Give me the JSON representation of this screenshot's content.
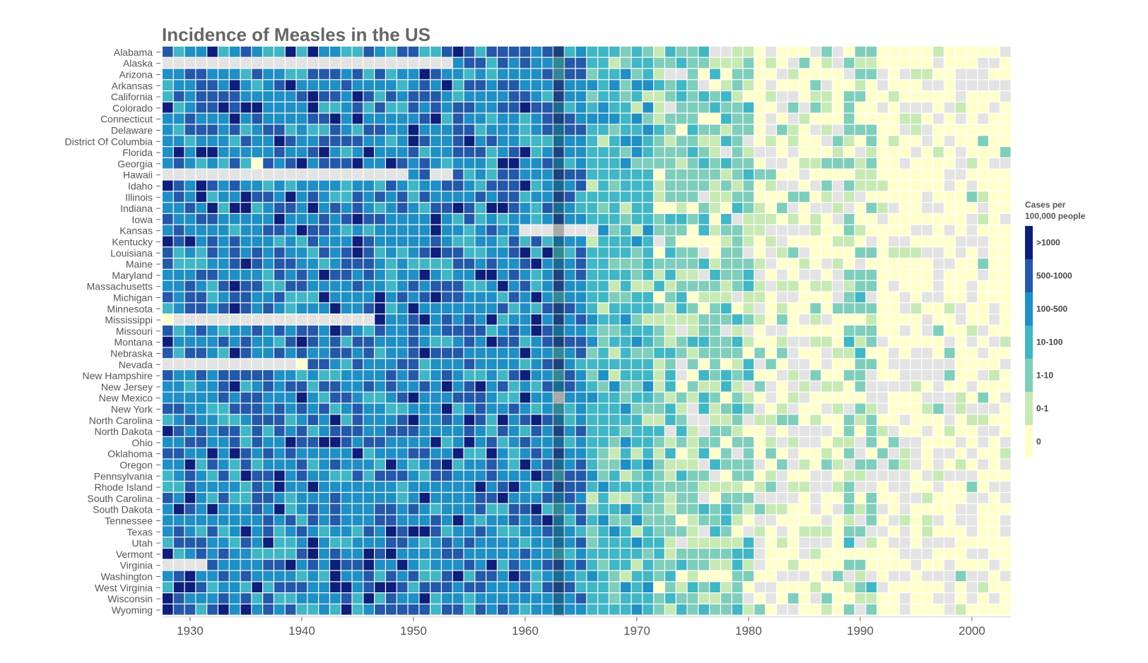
{
  "chart_data": {
    "type": "heatmap",
    "title": "Incidence of Measles in the US",
    "xlabel": "",
    "ylabel": "",
    "x_range": [
      1928,
      2003
    ],
    "x_ticks": [
      "1930",
      "1940",
      "1950",
      "1960",
      "1970",
      "1980",
      "1990",
      "2000"
    ],
    "highlight_year": 1963,
    "rows": [
      "Alabama",
      "Alaska",
      "Arizona",
      "Arkansas",
      "California",
      "Colorado",
      "Connecticut",
      "Delaware",
      "District Of Columbia",
      "Florida",
      "Georgia",
      "Hawaii",
      "Idaho",
      "Illinois",
      "Indiana",
      "Iowa",
      "Kansas",
      "Kentucky",
      "Louisiana",
      "Maine",
      "Maryland",
      "Massachusetts",
      "Michigan",
      "Minnesota",
      "Mississippi",
      "Missouri",
      "Montana",
      "Nebraska",
      "Nevada",
      "New Hampshire",
      "New Jersey",
      "New Mexico",
      "New York",
      "North Carolina",
      "North Dakota",
      "Ohio",
      "Oklahoma",
      "Oregon",
      "Pennsylvania",
      "Rhode Island",
      "South Carolina",
      "South Dakota",
      "Tennessee",
      "Texas",
      "Utah",
      "Vermont",
      "Virginia",
      "Washington",
      "West Virginia",
      "Wisconsin",
      "Wyoming"
    ],
    "missing_data_color": "#e3e3e3",
    "legend": {
      "title_line1": "Cases per",
      "title_line2": "100,000 people",
      "placement": "right",
      "bins": [
        {
          "label": ">1000",
          "color": "#0d1f7a"
        },
        {
          "label": "500-1000",
          "color": "#2458a8"
        },
        {
          "label": "100-500",
          "color": "#1f8fc4"
        },
        {
          "label": "10-100",
          "color": "#41b6c4"
        },
        {
          "label": "1-10",
          "color": "#7fcdbb"
        },
        {
          "label": "0-1",
          "color": "#c7e9b4"
        },
        {
          "label": "0",
          "color": "#ffffcc"
        }
      ]
    },
    "values_note": "",
    "missing": {
      "Alaska": [
        [
          1928,
          1953
        ]
      ],
      "Hawaii": [
        [
          1928,
          1949
        ],
        [
          1952,
          1953
        ]
      ],
      "Mississippi": [
        [
          1929,
          1946
        ]
      ],
      "Nevada": [
        [
          1928,
          1939
        ]
      ],
      "Virginia": [
        [
          1928,
          1931
        ]
      ],
      "Kansas": [
        [
          1960,
          1963
        ],
        [
          1964,
          1966
        ]
      ],
      "New Mexico": [
        [
          1963,
          1963
        ]
      ]
    },
    "zero_cells": {
      "Mississippi": [
        [
          1928,
          1928
        ]
      ],
      "Georgia": [
        [
          1936,
          1936
        ]
      ],
      "Nevada": [
        [
          1940,
          1940
        ]
      ]
    },
    "era_levels": [
      {
        "from": 1928,
        "to": 1962,
        "level": 2
      },
      {
        "from": 1963,
        "to": 1965,
        "level": 2
      },
      {
        "from": 1966,
        "to": 1967,
        "level": 3
      },
      {
        "from": 1968,
        "to": 1971,
        "level": 3
      },
      {
        "from": 1972,
        "to": 1976,
        "level": 4
      },
      {
        "from": 1977,
        "to": 1980,
        "level": 4
      },
      {
        "from": 1981,
        "to": 1989,
        "level": 6
      },
      {
        "from": 1989,
        "to": 1991,
        "level": 4
      },
      {
        "from": 1992,
        "to": 2003,
        "level": 6
      }
    ]
  }
}
